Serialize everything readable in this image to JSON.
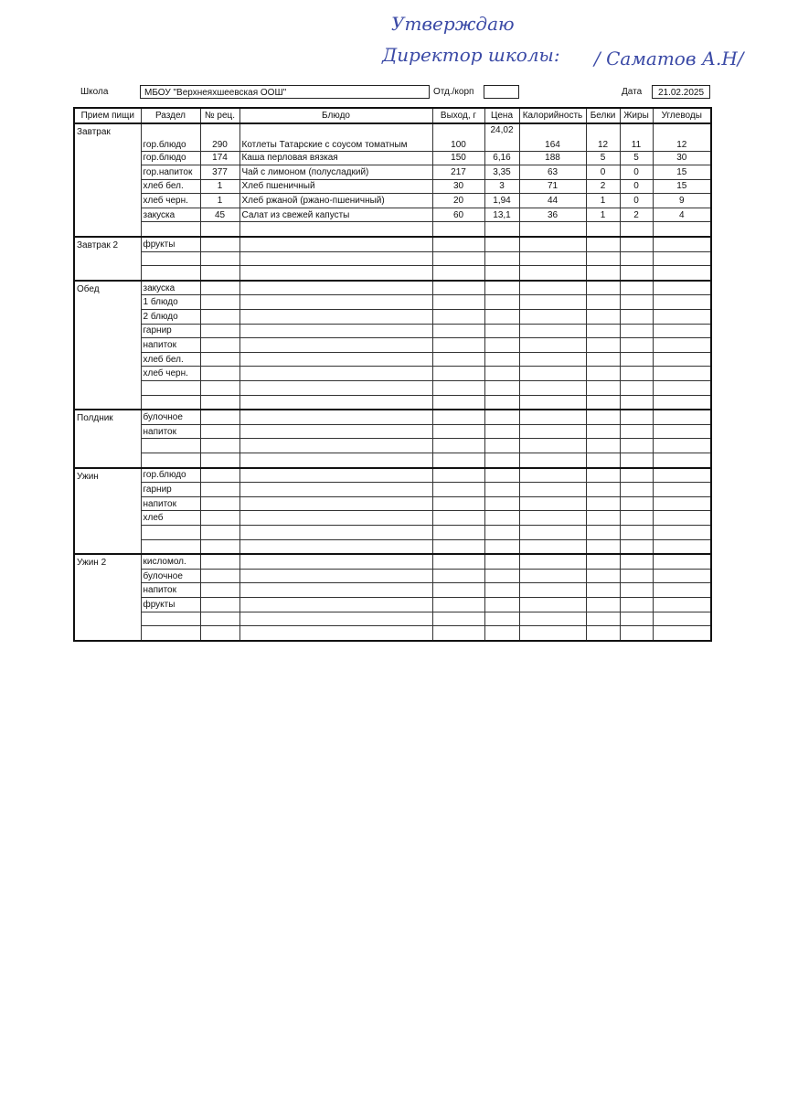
{
  "approval": {
    "line1": "Утверждаю",
    "line2": "Директор школы:",
    "signature": "/ Саматов А.Н/"
  },
  "header": {
    "school_label": "Школа",
    "school": "МБОУ \"Верхнеяхшеевская ООШ\"",
    "dept_label": "Отд./корп",
    "date_label": "Дата",
    "date": "21.02.2025"
  },
  "table": {
    "columns": [
      "Прием пищи",
      "Раздел",
      "№ рец.",
      "Блюдо",
      "Выход, г",
      "Цена",
      "Калорийность",
      "Белки",
      "Жиры",
      "Углеводы"
    ],
    "meals": [
      {
        "name": "Завтрак",
        "rows": [
          {
            "section": "гор.блюдо",
            "recipe": "290",
            "dish": "Котлеты Татарские с соусом томатным",
            "weight": "100",
            "price": "24,02",
            "kcal": "164",
            "protein": "12",
            "fat": "11",
            "carbs": "12"
          },
          {
            "section": "гор.блюдо",
            "recipe": "174",
            "dish": "Каша перловая вязкая",
            "weight": "150",
            "price": "6,16",
            "kcal": "188",
            "protein": "5",
            "fat": "5",
            "carbs": "30"
          },
          {
            "section": "гор.напиток",
            "recipe": "377",
            "dish": "Чай с лимоном (полусладкий)",
            "weight": "217",
            "price": "3,35",
            "kcal": "63",
            "protein": "0",
            "fat": "0",
            "carbs": "15"
          },
          {
            "section": "хлеб бел.",
            "recipe": "1",
            "dish": "Хлеб пшеничный",
            "weight": "30",
            "price": "3",
            "kcal": "71",
            "protein": "2",
            "fat": "0",
            "carbs": "15"
          },
          {
            "section": "хлеб черн.",
            "recipe": "1",
            "dish": "Хлеб ржаной (ржано-пшеничный)",
            "weight": "20",
            "price": "1,94",
            "kcal": "44",
            "protein": "1",
            "fat": "0",
            "carbs": "9"
          },
          {
            "section": "закуска",
            "recipe": "45",
            "dish": "Салат из свежей капусты",
            "weight": "60",
            "price": "13,1",
            "kcal": "36",
            "protein": "1",
            "fat": "2",
            "carbs": "4"
          }
        ]
      },
      {
        "name": "Завтрак 2",
        "rows": [
          {
            "section": "фрукты"
          }
        ]
      },
      {
        "name": "Обед",
        "rows": [
          {
            "section": "закуска"
          },
          {
            "section": "1 блюдо"
          },
          {
            "section": "2 блюдо"
          },
          {
            "section": "гарнир"
          },
          {
            "section": "напиток"
          },
          {
            "section": "хлеб бел."
          },
          {
            "section": "хлеб черн."
          }
        ]
      },
      {
        "name": "Полдник",
        "rows": [
          {
            "section": "булочное"
          },
          {
            "section": "напиток"
          }
        ]
      },
      {
        "name": "Ужин",
        "rows": [
          {
            "section": "гор.блюдо"
          },
          {
            "section": "гарнир"
          },
          {
            "section": "напиток"
          },
          {
            "section": "хлеб"
          }
        ]
      },
      {
        "name": "Ужин 2",
        "rows": [
          {
            "section": "кисломол."
          },
          {
            "section": "булочное"
          },
          {
            "section": "напиток"
          },
          {
            "section": "фрукты"
          }
        ]
      }
    ]
  }
}
